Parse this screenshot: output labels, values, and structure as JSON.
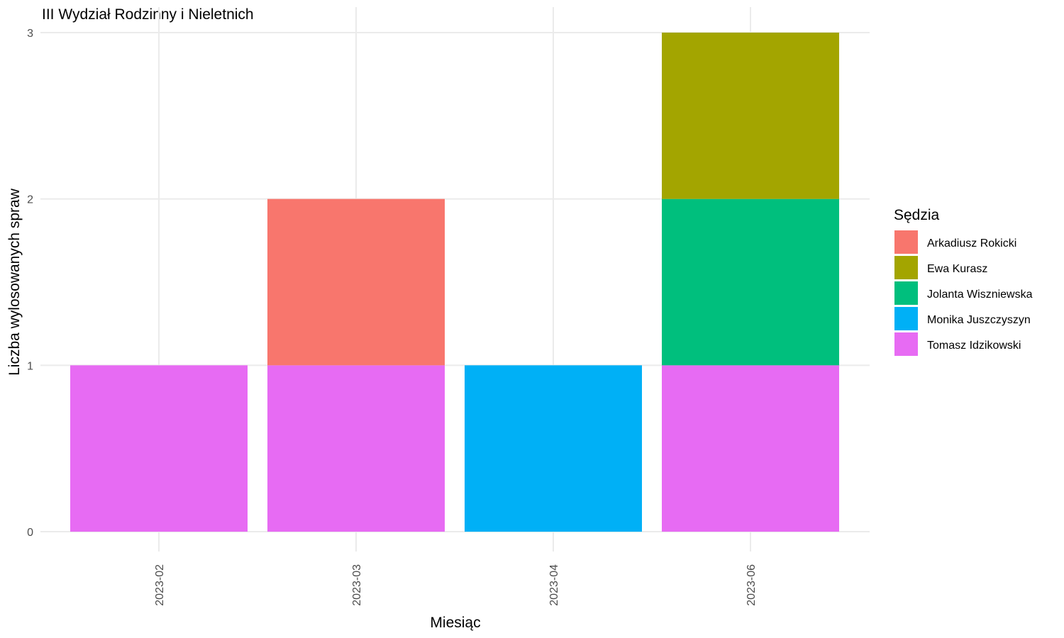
{
  "chart_data": {
    "type": "bar",
    "stacked": true,
    "title": "III Wydział Rodzinny i Nieletnich",
    "xlabel": "Miesiąc",
    "ylabel": "Liczba wylosowanych spraw",
    "categories": [
      "2023-02",
      "2023-03",
      "2023-04",
      "2023-06"
    ],
    "ylim": [
      0,
      3
    ],
    "yticks": [
      0,
      1,
      2,
      3
    ],
    "grid": true,
    "legend": {
      "title": "Sędzia",
      "placement": "right"
    },
    "stack_order": [
      "Tomasz Idzikowski",
      "Monika Juszczyszyn",
      "Jolanta Wiszniewska",
      "Ewa Kurasz",
      "Arkadiusz Rokicki"
    ],
    "series": [
      {
        "name": "Arkadiusz Rokicki",
        "color": "#F8766D",
        "values": [
          0,
          1,
          0,
          0
        ]
      },
      {
        "name": "Ewa Kurasz",
        "color": "#A3A500",
        "values": [
          0,
          0,
          0,
          1
        ]
      },
      {
        "name": "Jolanta Wiszniewska",
        "color": "#00BF7D",
        "values": [
          0,
          0,
          0,
          1
        ]
      },
      {
        "name": "Monika Juszczyszyn",
        "color": "#00B0F6",
        "values": [
          0,
          0,
          1,
          0
        ]
      },
      {
        "name": "Tomasz Idzikowski",
        "color": "#E76BF3",
        "values": [
          1,
          1,
          0,
          1
        ]
      }
    ]
  }
}
